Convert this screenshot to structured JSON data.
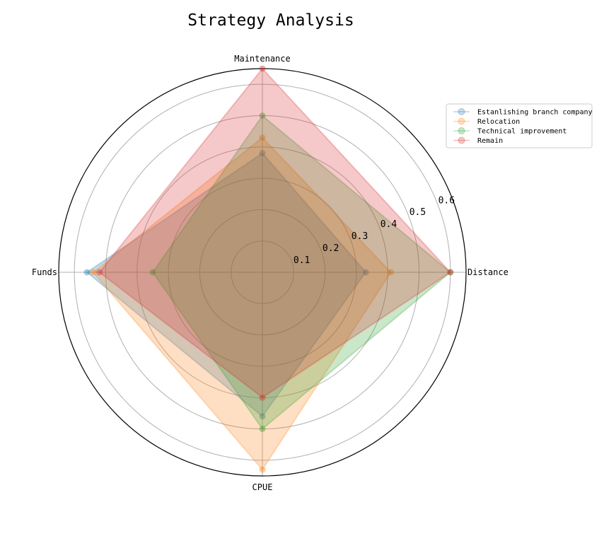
{
  "chart_data": {
    "type": "radar",
    "title": "Strategy Analysis",
    "axes": [
      "Distance",
      "Maintenance",
      "Funds",
      "CPUE"
    ],
    "rlim": [
      0,
      0.65
    ],
    "rticks": [
      0.1,
      0.2,
      0.3,
      0.4,
      0.5,
      0.6
    ],
    "rtick_labels": [
      "0.1",
      "0.2",
      "0.3",
      "0.4",
      "0.5",
      "0.6"
    ],
    "grid": true,
    "legend_position": "upper-right",
    "series": [
      {
        "name": "Estanlishing branch company",
        "color": "#1f77b4",
        "values": [
          0.33,
          0.38,
          0.56,
          0.46
        ]
      },
      {
        "name": "Relocation",
        "color": "#ff7f0e",
        "values": [
          0.41,
          0.43,
          0.54,
          0.63
        ]
      },
      {
        "name": "Technical improvement",
        "color": "#2ca02c",
        "values": [
          0.6,
          0.5,
          0.35,
          0.5
        ]
      },
      {
        "name": "Remain",
        "color": "#d62728",
        "values": [
          0.6,
          0.65,
          0.52,
          0.4
        ]
      }
    ]
  }
}
